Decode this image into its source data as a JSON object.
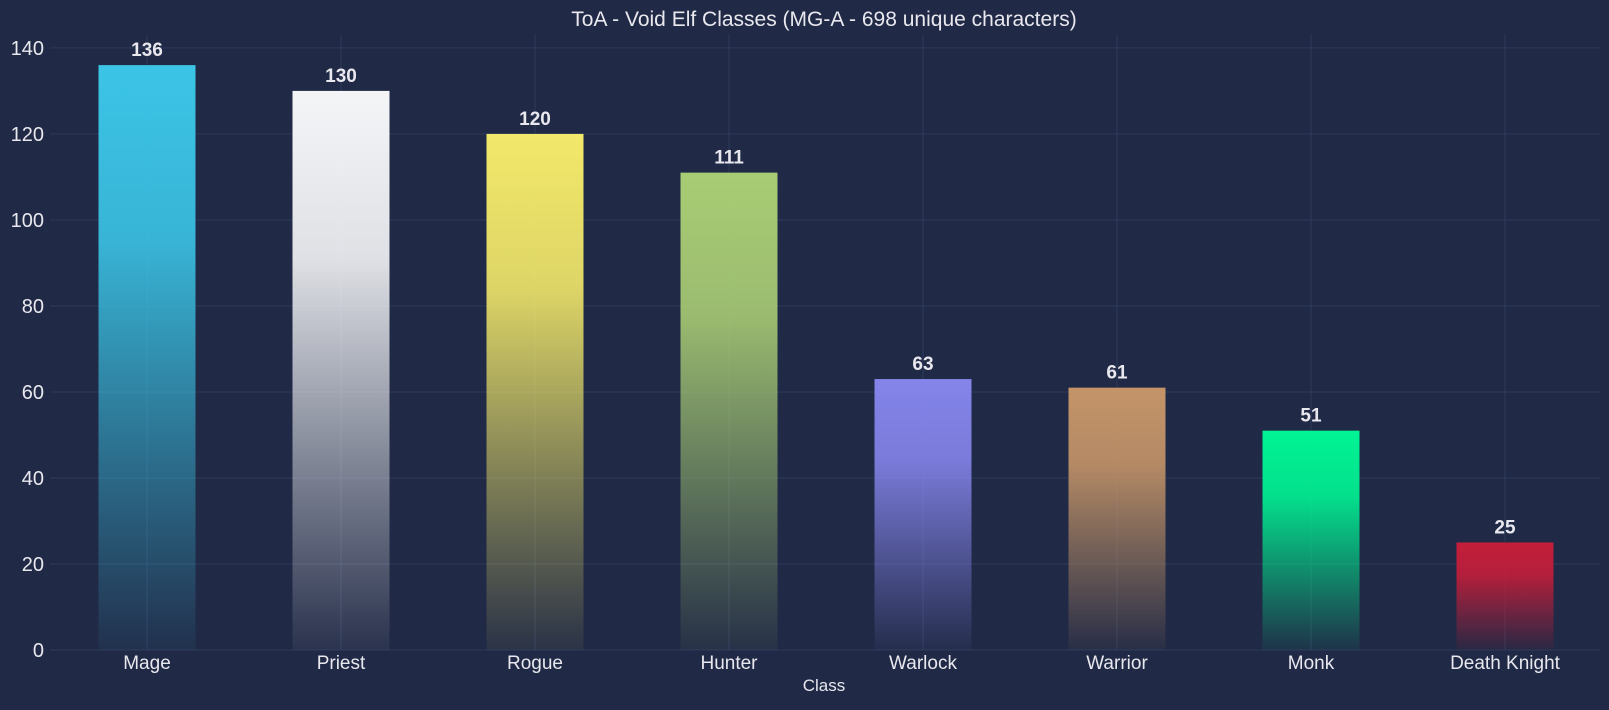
{
  "chart_data": {
    "type": "bar",
    "title": "ToA - Void Elf Classes (MG-A - 698 unique characters)",
    "xlabel": "Class",
    "ylabel": "",
    "categories": [
      "Mage",
      "Priest",
      "Rogue",
      "Hunter",
      "Warlock",
      "Warrior",
      "Monk",
      "Death Knight"
    ],
    "values": [
      136,
      130,
      120,
      111,
      63,
      61,
      51,
      25
    ],
    "data_labels": [
      "136",
      "130",
      "120",
      "111",
      "63",
      "61",
      "51",
      "25"
    ],
    "colors": [
      "#3bc4e6",
      "#f4f5f7",
      "#f2e86a",
      "#a8cc74",
      "#8484ea",
      "#c49468",
      "#00f494",
      "#c41e3a"
    ],
    "ylim": [
      0,
      143
    ],
    "yticks": [
      0,
      20,
      40,
      60,
      80,
      100,
      120,
      140
    ],
    "ytick_labels": [
      "0",
      "20",
      "40",
      "60",
      "80",
      "100",
      "120",
      "140"
    ],
    "grid": true,
    "legend": "none",
    "theme_colors": {
      "background": "#202945",
      "grid": "#2e3a5c",
      "text": "#e8e8ee"
    }
  }
}
